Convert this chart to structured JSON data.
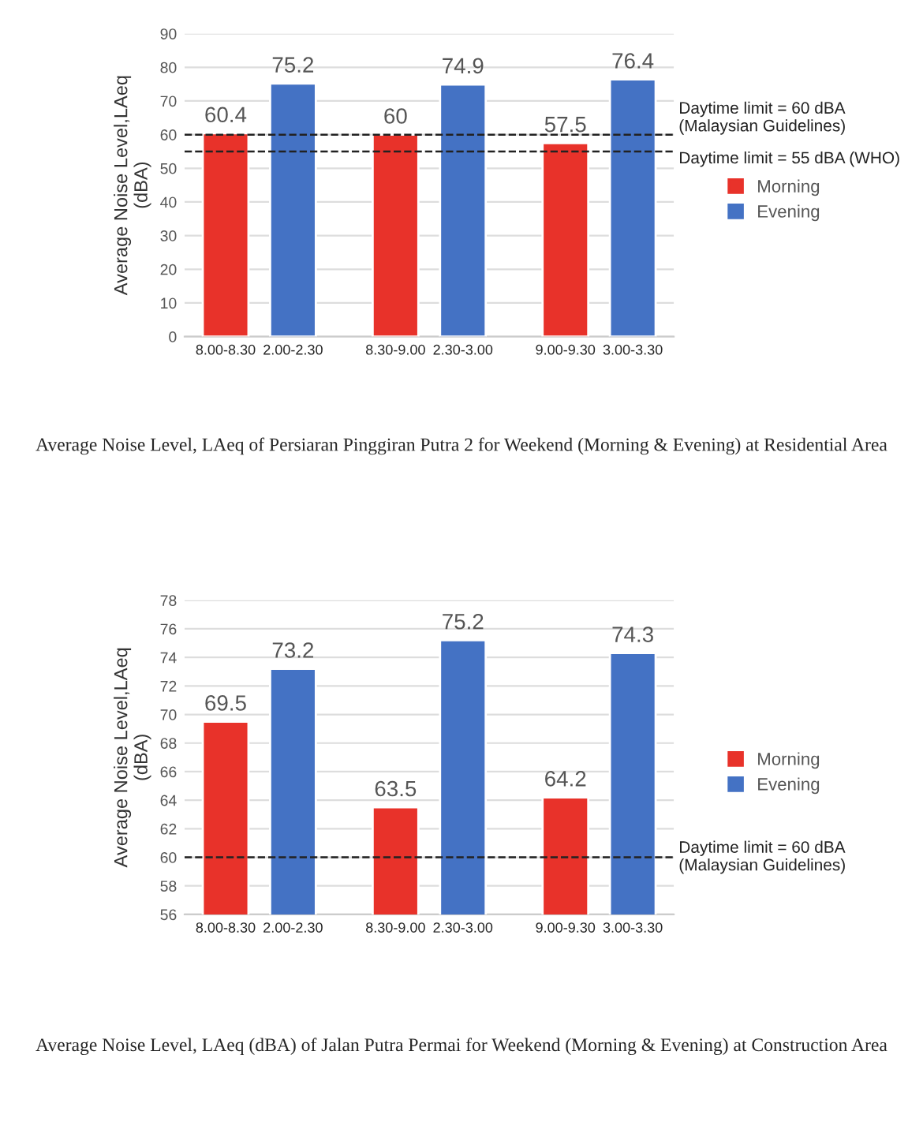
{
  "chart_data": [
    {
      "type": "bar",
      "ylabel": "Average Noise Level,LAeq\n(dBA)",
      "categories": [
        "8.00-8.30",
        "2.00-2.30",
        "8.30-9.00",
        "2.30-3.00",
        "9.00-9.30",
        "3.00-3.30"
      ],
      "series": [
        {
          "name": "Morning",
          "color": "#e8322a",
          "values": [
            60.4,
            null,
            60,
            null,
            57.5,
            null
          ]
        },
        {
          "name": "Evening",
          "color": "#4472c4",
          "values": [
            null,
            75.2,
            null,
            74.9,
            null,
            76.4
          ]
        }
      ],
      "ylim": [
        0,
        90
      ],
      "yticks": [
        0,
        10,
        20,
        30,
        40,
        50,
        60,
        70,
        80,
        90
      ],
      "grid": "y",
      "legend": "right",
      "data_labels": true,
      "ref_lines": [
        {
          "axis": "y",
          "value": 60,
          "label": "Daytime limit = 60 dBA\n(Malaysian Guidelines)",
          "color": "#222222",
          "line_style": "dashed"
        },
        {
          "axis": "y",
          "value": 55,
          "label": "Daytime limit = 55 dBA (WHO)",
          "color": "#222222",
          "line_style": "dashed"
        }
      ],
      "annotations": [
        "Average Noise Level, LAeq of Persiaran Pinggiran Putra 2 for Weekend (Morning & Evening) at Residential Area"
      ]
    },
    {
      "type": "bar",
      "ylabel": "Average Noise Level,LAeq\n(dBA)",
      "categories": [
        "8.00-8.30",
        "2.00-2.30",
        "8.30-9.00",
        "2.30-3.00",
        "9.00-9.30",
        "3.00-3.30"
      ],
      "series": [
        {
          "name": "Morning",
          "color": "#e8322a",
          "values": [
            69.5,
            null,
            63.5,
            null,
            64.2,
            null
          ]
        },
        {
          "name": "Evening",
          "color": "#4472c4",
          "values": [
            null,
            73.2,
            null,
            75.2,
            null,
            74.3
          ]
        }
      ],
      "ylim": [
        56,
        78
      ],
      "yticks": [
        56,
        58,
        60,
        62,
        64,
        66,
        68,
        70,
        72,
        74,
        76,
        78
      ],
      "grid": "y",
      "legend": "right",
      "data_labels": true,
      "ref_lines": [
        {
          "axis": "y",
          "value": 60,
          "label": "Daytime limit = 60 dBA\n(Malaysian Guidelines)",
          "color": "#222222",
          "line_style": "dashed"
        }
      ],
      "annotations": [
        "Average Noise Level, LAeq (dBA) of Jalan Putra Permai for Weekend (Morning & Evening) at Construction Area"
      ]
    }
  ]
}
